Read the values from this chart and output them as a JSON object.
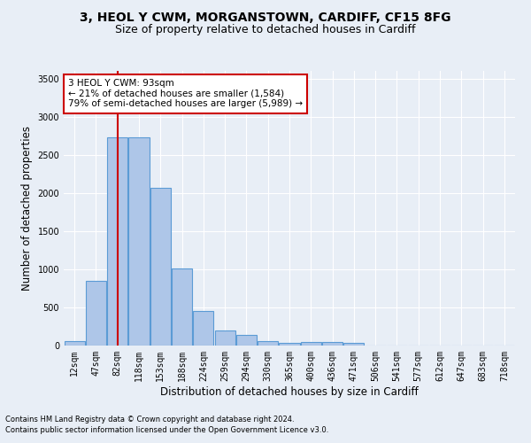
{
  "title_line1": "3, HEOL Y CWM, MORGANSTOWN, CARDIFF, CF15 8FG",
  "title_line2": "Size of property relative to detached houses in Cardiff",
  "xlabel": "Distribution of detached houses by size in Cardiff",
  "ylabel": "Number of detached properties",
  "footnote1": "Contains HM Land Registry data © Crown copyright and database right 2024.",
  "footnote2": "Contains public sector information licensed under the Open Government Licence v3.0.",
  "categories": [
    "12sqm",
    "47sqm",
    "82sqm",
    "118sqm",
    "153sqm",
    "188sqm",
    "224sqm",
    "259sqm",
    "294sqm",
    "330sqm",
    "365sqm",
    "400sqm",
    "436sqm",
    "471sqm",
    "506sqm",
    "541sqm",
    "577sqm",
    "612sqm",
    "647sqm",
    "683sqm",
    "718sqm"
  ],
  "values": [
    60,
    850,
    2730,
    2730,
    2070,
    1010,
    450,
    200,
    140,
    60,
    30,
    50,
    50,
    30,
    5,
    5,
    3,
    2,
    1,
    1,
    0
  ],
  "bar_color": "#aec6e8",
  "bar_edgecolor": "#5b9bd5",
  "bar_linewidth": 0.8,
  "vline_color": "#cc0000",
  "vline_linewidth": 1.5,
  "annotation_box_text": "3 HEOL Y CWM: 93sqm\n← 21% of detached houses are smaller (1,584)\n79% of semi-detached houses are larger (5,989) →",
  "annotation_box_color": "#cc0000",
  "annotation_box_bg": "#ffffff",
  "ylim": [
    0,
    3600
  ],
  "yticks": [
    0,
    500,
    1000,
    1500,
    2000,
    2500,
    3000,
    3500
  ],
  "bg_color": "#e8eef6",
  "plot_bg_color": "#e8eef6",
  "grid_color": "#ffffff",
  "title_fontsize": 10,
  "subtitle_fontsize": 9,
  "axis_label_fontsize": 8.5,
  "tick_fontsize": 7,
  "annotation_fontsize": 7.5,
  "footnote_fontsize": 6
}
